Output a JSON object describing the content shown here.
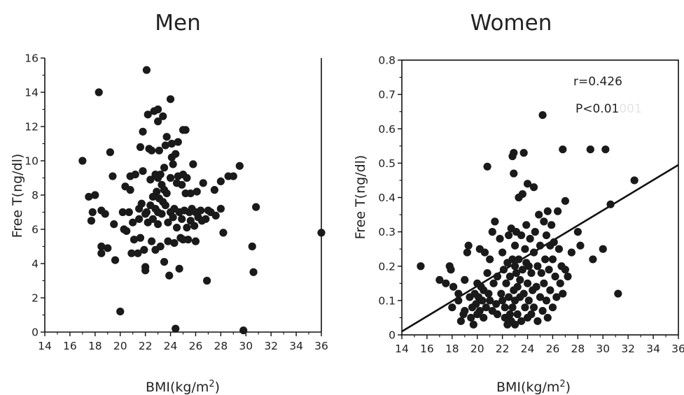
{
  "chart_data": [
    {
      "type": "scatter",
      "title": "Men",
      "xlabel": "BMI(kg/m",
      "xlabel_sup": "2",
      "xlabel_close": ")",
      "ylabel": "Free T(ng/dl)",
      "xlim": [
        14,
        36
      ],
      "ylim": [
        0,
        16
      ],
      "xticks": [
        14,
        16,
        18,
        20,
        22,
        24,
        26,
        28,
        30,
        32,
        34,
        36
      ],
      "yticks": [
        0,
        2,
        4,
        6,
        8,
        10,
        12,
        14,
        16
      ],
      "grid": false,
      "annotations": [],
      "points": [
        [
          17.0,
          10.0
        ],
        [
          17.5,
          7.9
        ],
        [
          17.8,
          7.0
        ],
        [
          17.7,
          6.5
        ],
        [
          18.0,
          8.0
        ],
        [
          18.3,
          14.0
        ],
        [
          18.5,
          7.1
        ],
        [
          18.8,
          6.9
        ],
        [
          18.5,
          5.0
        ],
        [
          18.5,
          4.6
        ],
        [
          19.0,
          4.9
        ],
        [
          19.2,
          10.5
        ],
        [
          19.4,
          9.1
        ],
        [
          19.5,
          6.3
        ],
        [
          19.6,
          4.2
        ],
        [
          20.0,
          1.2
        ],
        [
          20.2,
          7.0
        ],
        [
          20.3,
          6.0
        ],
        [
          20.4,
          8.5
        ],
        [
          20.5,
          5.9
        ],
        [
          20.7,
          7.0
        ],
        [
          20.8,
          8.3
        ],
        [
          20.8,
          9.1
        ],
        [
          20.9,
          4.6
        ],
        [
          21.0,
          6.4
        ],
        [
          21.1,
          5.4
        ],
        [
          21.2,
          9.2
        ],
        [
          21.4,
          4.6
        ],
        [
          21.5,
          6.6
        ],
        [
          21.5,
          7.2
        ],
        [
          21.6,
          5.5
        ],
        [
          21.6,
          10.8
        ],
        [
          21.7,
          7.5
        ],
        [
          21.8,
          11.7
        ],
        [
          21.8,
          9.4
        ],
        [
          21.9,
          4.8
        ],
        [
          22.0,
          3.8
        ],
        [
          22.0,
          3.6
        ],
        [
          22.0,
          6.9
        ],
        [
          22.1,
          7.0
        ],
        [
          22.1,
          15.3
        ],
        [
          22.2,
          6.4
        ],
        [
          22.2,
          12.7
        ],
        [
          22.3,
          10.7
        ],
        [
          22.4,
          8.9
        ],
        [
          22.4,
          7.4
        ],
        [
          22.5,
          10.6
        ],
        [
          22.5,
          5.3
        ],
        [
          22.6,
          7.9
        ],
        [
          22.6,
          6.6
        ],
        [
          22.7,
          12.9
        ],
        [
          22.8,
          9.2
        ],
        [
          22.8,
          7.2
        ],
        [
          22.8,
          4.8
        ],
        [
          22.9,
          8.2
        ],
        [
          23.0,
          12.3
        ],
        [
          23.0,
          9.0
        ],
        [
          23.0,
          7.0
        ],
        [
          23.0,
          6.3
        ],
        [
          23.0,
          13.0
        ],
        [
          23.1,
          10.6
        ],
        [
          23.1,
          7.8
        ],
        [
          23.2,
          9.2
        ],
        [
          23.2,
          5.0
        ],
        [
          23.3,
          8.6
        ],
        [
          23.3,
          6.9
        ],
        [
          23.4,
          12.6
        ],
        [
          23.4,
          7.6
        ],
        [
          23.5,
          8.3
        ],
        [
          23.5,
          9.6
        ],
        [
          23.5,
          4.1
        ],
        [
          23.6,
          10.9
        ],
        [
          23.6,
          7.4
        ],
        [
          23.7,
          11.4
        ],
        [
          23.7,
          8.1
        ],
        [
          23.8,
          6.4
        ],
        [
          23.8,
          5.3
        ],
        [
          23.9,
          3.3
        ],
        [
          24.0,
          13.6
        ],
        [
          24.0,
          9.0
        ],
        [
          24.0,
          7.0
        ],
        [
          24.1,
          10.2
        ],
        [
          24.1,
          11.0
        ],
        [
          24.2,
          9.8
        ],
        [
          24.2,
          6.7
        ],
        [
          24.3,
          5.2
        ],
        [
          24.3,
          7.2
        ],
        [
          24.4,
          10.4
        ],
        [
          24.4,
          0.2
        ],
        [
          24.5,
          8.7
        ],
        [
          24.5,
          6.1
        ],
        [
          24.6,
          11.1
        ],
        [
          24.6,
          9.1
        ],
        [
          24.7,
          7.0
        ],
        [
          24.7,
          3.7
        ],
        [
          24.8,
          5.5
        ],
        [
          24.9,
          8.6
        ],
        [
          24.9,
          6.6
        ],
        [
          25.0,
          11.8
        ],
        [
          25.0,
          9.2
        ],
        [
          25.0,
          5.4
        ],
        [
          25.1,
          7.1
        ],
        [
          25.2,
          11.8
        ],
        [
          25.2,
          8.1
        ],
        [
          25.3,
          6.1
        ],
        [
          25.3,
          9.0
        ],
        [
          25.4,
          5.4
        ],
        [
          25.5,
          7.0
        ],
        [
          25.6,
          8.1
        ],
        [
          25.6,
          6.5
        ],
        [
          25.7,
          7.2
        ],
        [
          25.8,
          9.8
        ],
        [
          25.9,
          6.2
        ],
        [
          26.0,
          7.0
        ],
        [
          26.0,
          5.3
        ],
        [
          26.1,
          8.2
        ],
        [
          26.2,
          6.7
        ],
        [
          26.4,
          7.1
        ],
        [
          26.5,
          6.5
        ],
        [
          26.6,
          8.7
        ],
        [
          26.8,
          6.6
        ],
        [
          26.9,
          3.0
        ],
        [
          27.0,
          7.1
        ],
        [
          27.2,
          7.0
        ],
        [
          27.5,
          8.3
        ],
        [
          27.6,
          6.8
        ],
        [
          28.0,
          7.2
        ],
        [
          28.0,
          8.8
        ],
        [
          28.2,
          5.8
        ],
        [
          28.6,
          9.1
        ],
        [
          29.0,
          9.1
        ],
        [
          29.5,
          9.7
        ],
        [
          29.8,
          0.1
        ],
        [
          30.5,
          5.0
        ],
        [
          30.6,
          3.5
        ],
        [
          30.8,
          7.3
        ],
        [
          36.0,
          5.8
        ]
      ]
    },
    {
      "type": "scatter",
      "title": "Women",
      "xlabel": "BMI(kg/m",
      "xlabel_sup": "2",
      "xlabel_close": ")",
      "ylabel": "Free T(ng/dl)",
      "xlim": [
        14,
        36
      ],
      "ylim": [
        0,
        0.8
      ],
      "xticks": [
        14,
        16,
        18,
        20,
        22,
        24,
        26,
        28,
        30,
        32,
        34,
        36
      ],
      "yticks": [
        0,
        0.1,
        0.2,
        0.3,
        0.4,
        0.5,
        0.6,
        0.7,
        0.8
      ],
      "ytick_labels": [
        "0",
        "0.1",
        "0.2",
        "0.3",
        "0.4",
        "0.5",
        "0.6",
        "0.7",
        "0.8"
      ],
      "grid": false,
      "annotations": [
        "r=0.426",
        "P<0.01"
      ],
      "annotation_ghost": "001",
      "regression_line": {
        "x": [
          14,
          36
        ],
        "y": [
          0.01,
          0.495
        ]
      },
      "points": [
        [
          15.5,
          0.2
        ],
        [
          17.0,
          0.16
        ],
        [
          17.5,
          0.15
        ],
        [
          17.8,
          0.2
        ],
        [
          17.9,
          0.19
        ],
        [
          18.0,
          0.08
        ],
        [
          18.1,
          0.14
        ],
        [
          18.5,
          0.1
        ],
        [
          18.5,
          0.12
        ],
        [
          18.7,
          0.04
        ],
        [
          18.9,
          0.06
        ],
        [
          19.0,
          0.07
        ],
        [
          19.0,
          0.16
        ],
        [
          19.2,
          0.24
        ],
        [
          19.3,
          0.26
        ],
        [
          19.4,
          0.11
        ],
        [
          19.5,
          0.05
        ],
        [
          19.6,
          0.08
        ],
        [
          19.7,
          0.03
        ],
        [
          19.8,
          0.12
        ],
        [
          19.9,
          0.09
        ],
        [
          20.0,
          0.15
        ],
        [
          20.0,
          0.06
        ],
        [
          20.1,
          0.11
        ],
        [
          20.2,
          0.25
        ],
        [
          20.2,
          0.07
        ],
        [
          20.3,
          0.14
        ],
        [
          20.4,
          0.1
        ],
        [
          20.5,
          0.13
        ],
        [
          20.5,
          0.05
        ],
        [
          20.6,
          0.24
        ],
        [
          20.7,
          0.08
        ],
        [
          20.8,
          0.49
        ],
        [
          20.8,
          0.18
        ],
        [
          20.9,
          0.12
        ],
        [
          21.0,
          0.1
        ],
        [
          21.0,
          0.22
        ],
        [
          21.2,
          0.07
        ],
        [
          21.2,
          0.3
        ],
        [
          21.3,
          0.15
        ],
        [
          21.4,
          0.33
        ],
        [
          21.5,
          0.09
        ],
        [
          21.6,
          0.17
        ],
        [
          21.6,
          0.06
        ],
        [
          21.8,
          0.28
        ],
        [
          21.9,
          0.12
        ],
        [
          22.0,
          0.24
        ],
        [
          22.0,
          0.1
        ],
        [
          22.1,
          0.19
        ],
        [
          22.2,
          0.05
        ],
        [
          22.2,
          0.08
        ],
        [
          22.3,
          0.15
        ],
        [
          22.4,
          0.21
        ],
        [
          22.4,
          0.03
        ],
        [
          22.5,
          0.29
        ],
        [
          22.5,
          0.11
        ],
        [
          22.6,
          0.06
        ],
        [
          22.6,
          0.17
        ],
        [
          22.7,
          0.31
        ],
        [
          22.7,
          0.04
        ],
        [
          22.8,
          0.52
        ],
        [
          22.8,
          0.22
        ],
        [
          22.8,
          0.08
        ],
        [
          22.9,
          0.53
        ],
        [
          22.9,
          0.47
        ],
        [
          22.9,
          0.13
        ],
        [
          23.0,
          0.26
        ],
        [
          23.0,
          0.2
        ],
        [
          23.0,
          0.03
        ],
        [
          23.0,
          0.1
        ],
        [
          23.1,
          0.18
        ],
        [
          23.1,
          0.3
        ],
        [
          23.2,
          0.14
        ],
        [
          23.2,
          0.06
        ],
        [
          23.3,
          0.4
        ],
        [
          23.3,
          0.22
        ],
        [
          23.4,
          0.11
        ],
        [
          23.4,
          0.16
        ],
        [
          23.5,
          0.29
        ],
        [
          23.5,
          0.04
        ],
        [
          23.6,
          0.41
        ],
        [
          23.6,
          0.19
        ],
        [
          23.7,
          0.53
        ],
        [
          23.7,
          0.12
        ],
        [
          23.8,
          0.08
        ],
        [
          23.8,
          0.25
        ],
        [
          23.9,
          0.21
        ],
        [
          23.9,
          0.32
        ],
        [
          24.0,
          0.44
        ],
        [
          24.0,
          0.15
        ],
        [
          24.0,
          0.05
        ],
        [
          24.1,
          0.1
        ],
        [
          24.1,
          0.2
        ],
        [
          24.2,
          0.28
        ],
        [
          24.3,
          0.06
        ],
        [
          24.3,
          0.18
        ],
        [
          24.4,
          0.13
        ],
        [
          24.5,
          0.43
        ],
        [
          24.5,
          0.24
        ],
        [
          24.5,
          0.08
        ],
        [
          24.6,
          0.3
        ],
        [
          24.7,
          0.14
        ],
        [
          24.8,
          0.04
        ],
        [
          24.8,
          0.2
        ],
        [
          24.9,
          0.35
        ],
        [
          25.0,
          0.11
        ],
        [
          25.0,
          0.26
        ],
        [
          25.1,
          0.18
        ],
        [
          25.2,
          0.64
        ],
        [
          25.2,
          0.07
        ],
        [
          25.3,
          0.33
        ],
        [
          25.3,
          0.15
        ],
        [
          25.4,
          0.22
        ],
        [
          25.5,
          0.1
        ],
        [
          25.5,
          0.29
        ],
        [
          25.6,
          0.36
        ],
        [
          25.6,
          0.05
        ],
        [
          25.7,
          0.19
        ],
        [
          25.8,
          0.26
        ],
        [
          25.8,
          0.13
        ],
        [
          25.9,
          0.32
        ],
        [
          26.0,
          0.08
        ],
        [
          26.0,
          0.22
        ],
        [
          26.1,
          0.27
        ],
        [
          26.2,
          0.17
        ],
        [
          26.3,
          0.11
        ],
        [
          26.4,
          0.36
        ],
        [
          26.5,
          0.25
        ],
        [
          26.6,
          0.15
        ],
        [
          26.7,
          0.2
        ],
        [
          26.8,
          0.54
        ],
        [
          26.8,
          0.12
        ],
        [
          27.0,
          0.39
        ],
        [
          27.0,
          0.19
        ],
        [
          27.2,
          0.17
        ],
        [
          27.5,
          0.24
        ],
        [
          28.0,
          0.3
        ],
        [
          28.2,
          0.26
        ],
        [
          29.0,
          0.54
        ],
        [
          29.2,
          0.22
        ],
        [
          30.0,
          0.25
        ],
        [
          30.2,
          0.54
        ],
        [
          30.6,
          0.38
        ],
        [
          31.2,
          0.12
        ],
        [
          32.5,
          0.45
        ]
      ]
    }
  ]
}
